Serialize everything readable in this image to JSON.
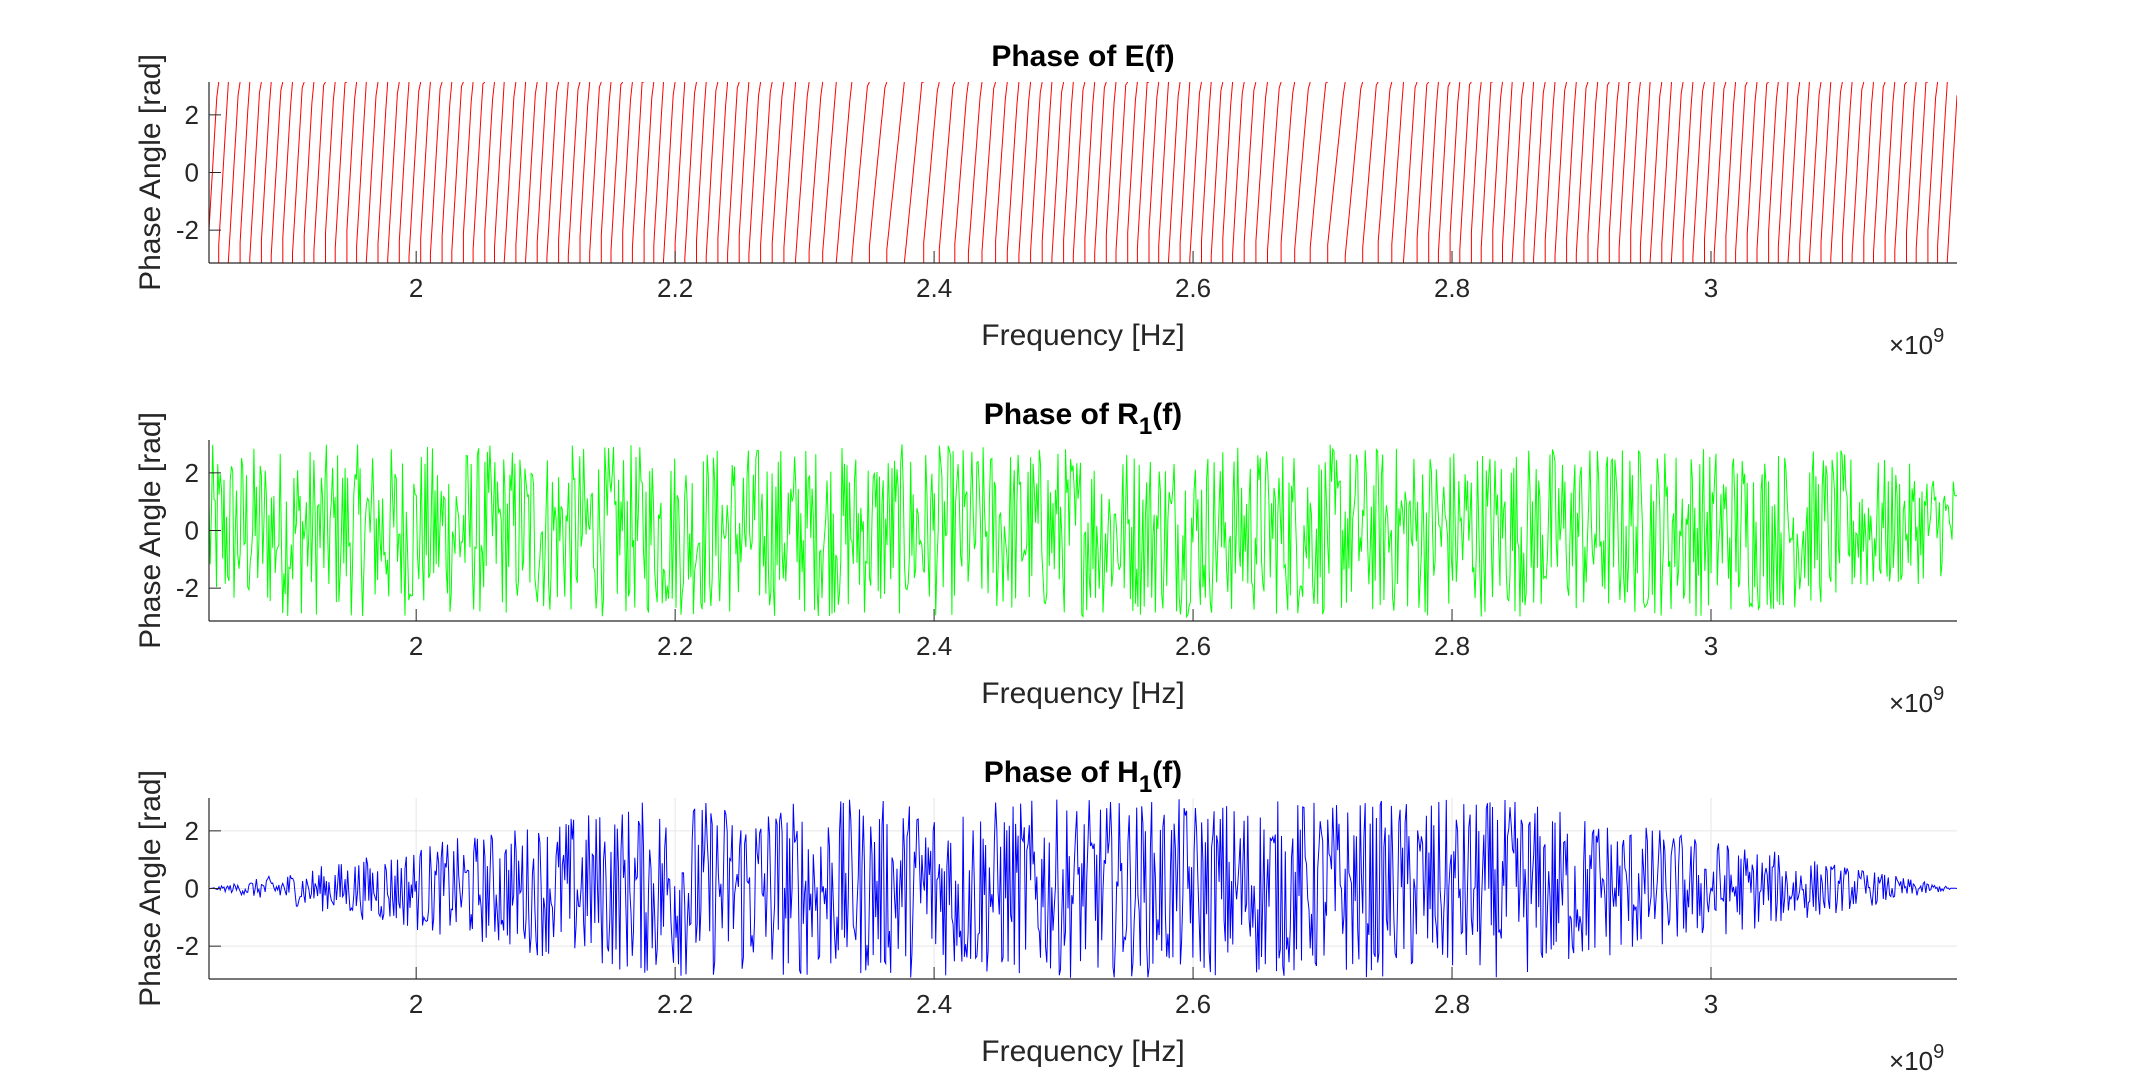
{
  "chart_data": [
    {
      "type": "line",
      "id": "E",
      "title": "Phase of E(f)",
      "title_parts": {
        "main": "Phase of E(f)",
        "sub": "",
        "after": ""
      },
      "xlabel": "Frequency [Hz]",
      "ylabel": "Phase Angle [rad]",
      "x_multiplier": {
        "base": "×10",
        "exponent": "9"
      },
      "xlim": [
        1.84,
        3.19
      ],
      "ylim": [
        -3.14,
        3.14
      ],
      "xticks": [
        2,
        2.2,
        2.4,
        2.6,
        2.8,
        3
      ],
      "xtick_labels": [
        "2",
        "2.2",
        "2.4",
        "2.6",
        "2.8",
        "3"
      ],
      "yticks": [
        -2,
        0,
        2
      ],
      "ytick_labels": [
        "-2",
        "0",
        "2"
      ],
      "grid": false,
      "color": "#ff0000",
      "pattern": "wrapped phase ramp, dense oscillation between -3.14 and 3.14 rad across the full band; slow regions near 2.37e9 and 2.71e9",
      "series": [
        {
          "x": [
            1.84,
            1.9,
            2.0,
            2.1,
            2.2,
            2.3,
            2.33,
            2.37,
            2.41,
            2.45,
            2.5,
            2.6,
            2.7,
            2.72,
            2.8,
            2.9,
            3.0,
            3.1,
            3.19
          ],
          "y_min": [
            -3.14,
            -3.14,
            -3.14,
            -3.14,
            -3.14,
            -3.14,
            -3.14,
            -3.14,
            -3.14,
            -3.14,
            -3.14,
            -3.14,
            -3.14,
            -3.14,
            -3.14,
            -3.14,
            -3.14,
            -3.14,
            -3.14
          ],
          "y_max": [
            3.14,
            3.14,
            3.14,
            3.14,
            3.14,
            3.14,
            3.14,
            3.14,
            3.14,
            3.14,
            3.14,
            3.14,
            3.14,
            3.14,
            3.14,
            3.14,
            3.14,
            3.14,
            3.14
          ]
        }
      ]
    },
    {
      "type": "line",
      "id": "R1",
      "title": "Phase of R1(f)",
      "title_parts": {
        "main": "Phase of R",
        "sub": "1",
        "after": "(f)"
      },
      "xlabel": "Frequency [Hz]",
      "ylabel": "Phase Angle [rad]",
      "x_multiplier": {
        "base": "×10",
        "exponent": "9"
      },
      "xlim": [
        1.84,
        3.19
      ],
      "ylim": [
        -3.14,
        3.14
      ],
      "xticks": [
        2,
        2.2,
        2.4,
        2.6,
        2.8,
        3
      ],
      "xtick_labels": [
        "2",
        "2.2",
        "2.4",
        "2.6",
        "2.8",
        "3"
      ],
      "yticks": [
        -2,
        0,
        2
      ],
      "ytick_labels": [
        "-2",
        "0",
        "2"
      ],
      "grid": false,
      "color": "#00ff00",
      "pattern": "noise-like phase across the full band, amplitude about ±3 rad",
      "series": [
        {
          "x": [
            1.84,
            1.9,
            2.0,
            2.1,
            2.2,
            2.3,
            2.4,
            2.5,
            2.6,
            2.7,
            2.8,
            2.9,
            3.0,
            3.1,
            3.19
          ],
          "y_min": [
            -3.0,
            -3.0,
            -3.0,
            -3.0,
            -3.0,
            -3.0,
            -3.0,
            -3.0,
            -3.0,
            -3.0,
            -3.0,
            -3.0,
            -3.0,
            -2.6,
            -1.5
          ],
          "y_max": [
            3.0,
            3.0,
            3.0,
            3.0,
            3.0,
            3.0,
            3.0,
            3.0,
            3.0,
            3.0,
            3.0,
            3.0,
            3.0,
            2.8,
            2.0
          ]
        }
      ]
    },
    {
      "type": "line",
      "id": "H1",
      "title": "Phase of H1(f)",
      "title_parts": {
        "main": "Phase of H",
        "sub": "1",
        "after": "(f)"
      },
      "xlabel": "Frequency [Hz]",
      "ylabel": "Phase Angle [rad]",
      "x_multiplier": {
        "base": "×10",
        "exponent": "9"
      },
      "xlim": [
        1.84,
        3.19
      ],
      "ylim": [
        -3.14,
        3.14
      ],
      "xticks": [
        2,
        2.2,
        2.4,
        2.6,
        2.8,
        3
      ],
      "xtick_labels": [
        "2",
        "2.2",
        "2.4",
        "2.6",
        "2.8",
        "3"
      ],
      "yticks": [
        -2,
        0,
        2
      ],
      "ytick_labels": [
        "-2",
        "0",
        "2"
      ],
      "grid": true,
      "color": "#0000ff",
      "pattern": "zero outside band; noise-like phase between 2.18e9 and 2.855e9",
      "band": [
        2.178,
        2.853
      ],
      "series": [
        {
          "x": [
            1.84,
            2.178,
            2.2,
            2.3,
            2.4,
            2.5,
            2.6,
            2.7,
            2.8,
            2.853,
            3.19
          ],
          "y_min": [
            0,
            -3.1,
            -3.1,
            -3.1,
            -3.1,
            -3.1,
            -3.1,
            -3.1,
            -3.1,
            -3.1,
            0
          ],
          "y_max": [
            0,
            3.1,
            3.1,
            3.1,
            3.1,
            3.1,
            3.1,
            3.1,
            3.1,
            3.1,
            0
          ]
        }
      ]
    }
  ]
}
